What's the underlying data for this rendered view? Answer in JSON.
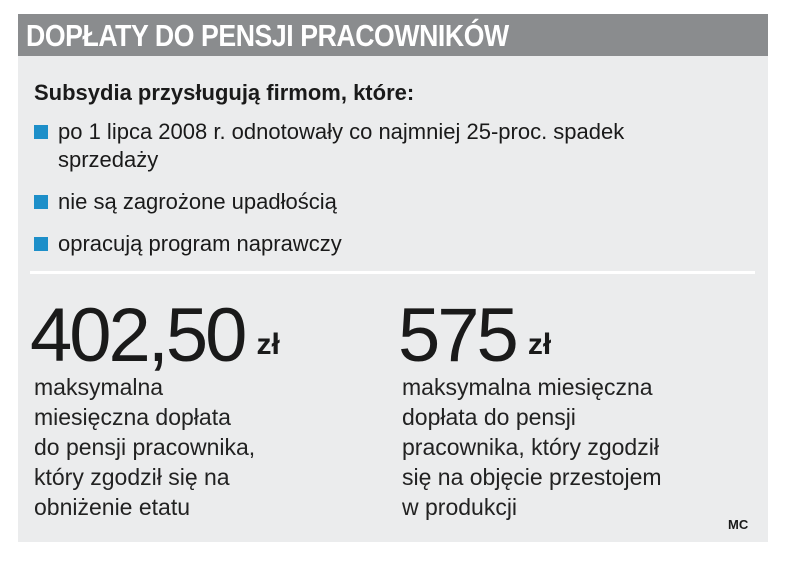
{
  "header": {
    "title": "DOPŁATY DO PENSJI PRACOWNIKÓW"
  },
  "intro": "Subsydia przysługują firmom, które:",
  "bullets": [
    {
      "lines": [
        "po 1 lipca 2008 r. odnotowały co najmniej 25-proc. spadek",
        "sprzedaży"
      ]
    },
    {
      "lines": [
        "nie są zagrożone upadłością"
      ]
    },
    {
      "lines": [
        "opracują program naprawczy"
      ]
    }
  ],
  "stats": [
    {
      "amount": "402,50",
      "unit": "zł",
      "lines": [
        "maksymalna",
        "miesięczna dopłata",
        "do pensji pracownika,",
        "który zgodził się na",
        "obniżenie etatu"
      ]
    },
    {
      "amount": "575",
      "unit": "zł",
      "lines": [
        "maksymalna miesięczna",
        "dopłata do pensji",
        "pracownika, który zgodził",
        "się na objęcie przestojem",
        "w produkcji"
      ]
    }
  ],
  "credit": "MC"
}
